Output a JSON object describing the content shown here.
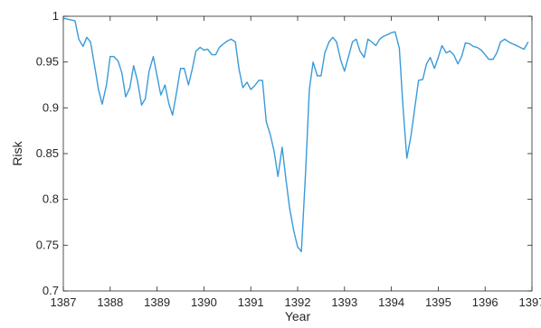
{
  "chart_data": {
    "type": "line",
    "title": "",
    "xlabel": "Year",
    "ylabel": "Risk",
    "xlim": [
      1387,
      1397
    ],
    "ylim": [
      0.7,
      1.0
    ],
    "grid": false,
    "line_color": "#3a9ad9",
    "x_ticks": [
      1387,
      1388,
      1389,
      1390,
      1391,
      1392,
      1393,
      1394,
      1395,
      1396,
      1397
    ],
    "y_ticks": [
      0.7,
      0.75,
      0.8,
      0.85,
      0.9,
      0.95,
      1.0
    ],
    "x_tick_labels": [
      "1387",
      "1388",
      "1389",
      "1390",
      "1391",
      "1392",
      "1393",
      "1394",
      "1395",
      "1396",
      "1397"
    ],
    "y_tick_labels": [
      "0.7",
      "0.75",
      "0.8",
      "0.85",
      "0.9",
      "0.95",
      "1"
    ],
    "series": [
      {
        "x": [
          1387.0,
          1387.08,
          1387.25,
          1387.33,
          1387.42,
          1387.5,
          1387.58,
          1387.67,
          1387.75,
          1387.83,
          1387.92,
          1388.0,
          1388.08,
          1388.17,
          1388.25,
          1388.33,
          1388.42,
          1388.5,
          1388.58,
          1388.67,
          1388.75,
          1388.83,
          1388.92,
          1389.0,
          1389.08,
          1389.17,
          1389.25,
          1389.33,
          1389.42,
          1389.5,
          1389.58,
          1389.67,
          1389.75,
          1389.83,
          1389.92,
          1390.0,
          1390.08,
          1390.17,
          1390.25,
          1390.33,
          1390.42,
          1390.5,
          1390.58,
          1390.67,
          1390.75,
          1390.83,
          1390.92,
          1391.0,
          1391.08,
          1391.17,
          1391.25,
          1391.33,
          1391.42,
          1391.5,
          1391.58,
          1391.67,
          1391.75,
          1391.83,
          1391.92,
          1392.0,
          1392.08,
          1392.17,
          1392.25,
          1392.33,
          1392.42,
          1392.5,
          1392.58,
          1392.67,
          1392.75,
          1392.83,
          1392.92,
          1393.0,
          1393.08,
          1393.17,
          1393.25,
          1393.33,
          1393.42,
          1393.5,
          1393.58,
          1393.67,
          1393.75,
          1393.83,
          1393.92,
          1394.0,
          1394.08,
          1394.17,
          1394.25,
          1394.33,
          1394.42,
          1394.5,
          1394.58,
          1394.67,
          1394.75,
          1394.83,
          1394.92,
          1395.0,
          1395.08,
          1395.17,
          1395.25,
          1395.33,
          1395.42,
          1395.5,
          1395.58,
          1395.67,
          1395.75,
          1395.83,
          1395.92,
          1396.0,
          1396.08,
          1396.17,
          1396.25,
          1396.33,
          1396.42,
          1396.5,
          1396.58,
          1396.67,
          1396.75,
          1396.83,
          1396.92
        ],
        "values": [
          0.998,
          0.997,
          0.995,
          0.975,
          0.967,
          0.977,
          0.972,
          0.945,
          0.92,
          0.904,
          0.925,
          0.956,
          0.956,
          0.951,
          0.938,
          0.912,
          0.922,
          0.946,
          0.93,
          0.903,
          0.91,
          0.94,
          0.956,
          0.935,
          0.914,
          0.925,
          0.905,
          0.892,
          0.918,
          0.943,
          0.943,
          0.925,
          0.942,
          0.962,
          0.966,
          0.963,
          0.964,
          0.958,
          0.958,
          0.966,
          0.97,
          0.973,
          0.975,
          0.972,
          0.942,
          0.922,
          0.928,
          0.92,
          0.924,
          0.93,
          0.93,
          0.885,
          0.87,
          0.852,
          0.825,
          0.857,
          0.822,
          0.79,
          0.765,
          0.748,
          0.743,
          0.83,
          0.92,
          0.95,
          0.935,
          0.935,
          0.96,
          0.972,
          0.977,
          0.972,
          0.952,
          0.94,
          0.955,
          0.972,
          0.975,
          0.962,
          0.955,
          0.975,
          0.972,
          0.968,
          0.975,
          0.978,
          0.98,
          0.982,
          0.983,
          0.965,
          0.9,
          0.845,
          0.87,
          0.9,
          0.93,
          0.931,
          0.948,
          0.955,
          0.943,
          0.955,
          0.968,
          0.96,
          0.962,
          0.958,
          0.948,
          0.956,
          0.971,
          0.97,
          0.967,
          0.966,
          0.963,
          0.958,
          0.953,
          0.953,
          0.96,
          0.972,
          0.975,
          0.972,
          0.97,
          0.968,
          0.966,
          0.964,
          0.972
        ]
      }
    ]
  }
}
